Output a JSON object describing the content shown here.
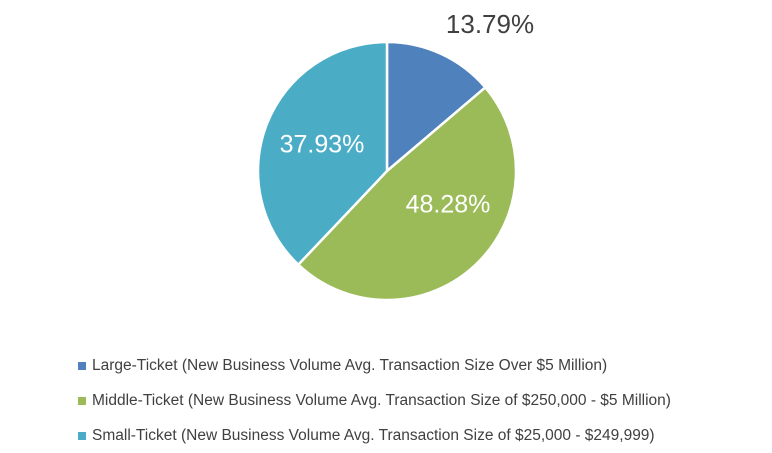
{
  "chart_data": {
    "type": "pie",
    "categories": [
      "Large-Ticket (New Business Volume Avg. Transaction Size Over $5 Million)",
      "Middle-Ticket (New Business Volume Avg. Transaction Size of $250,000 - $5 Million)",
      "Small-Ticket (New Business Volume Avg. Transaction Size of $25,000 - $249,999)"
    ],
    "values": [
      13.79,
      48.28,
      37.93
    ],
    "data_labels": [
      "13.79%",
      "48.28%",
      "37.93%"
    ],
    "colors": [
      "#4F81BD",
      "#9BBB59",
      "#4BACC6"
    ],
    "title": "",
    "legend_position": "bottom-left"
  }
}
